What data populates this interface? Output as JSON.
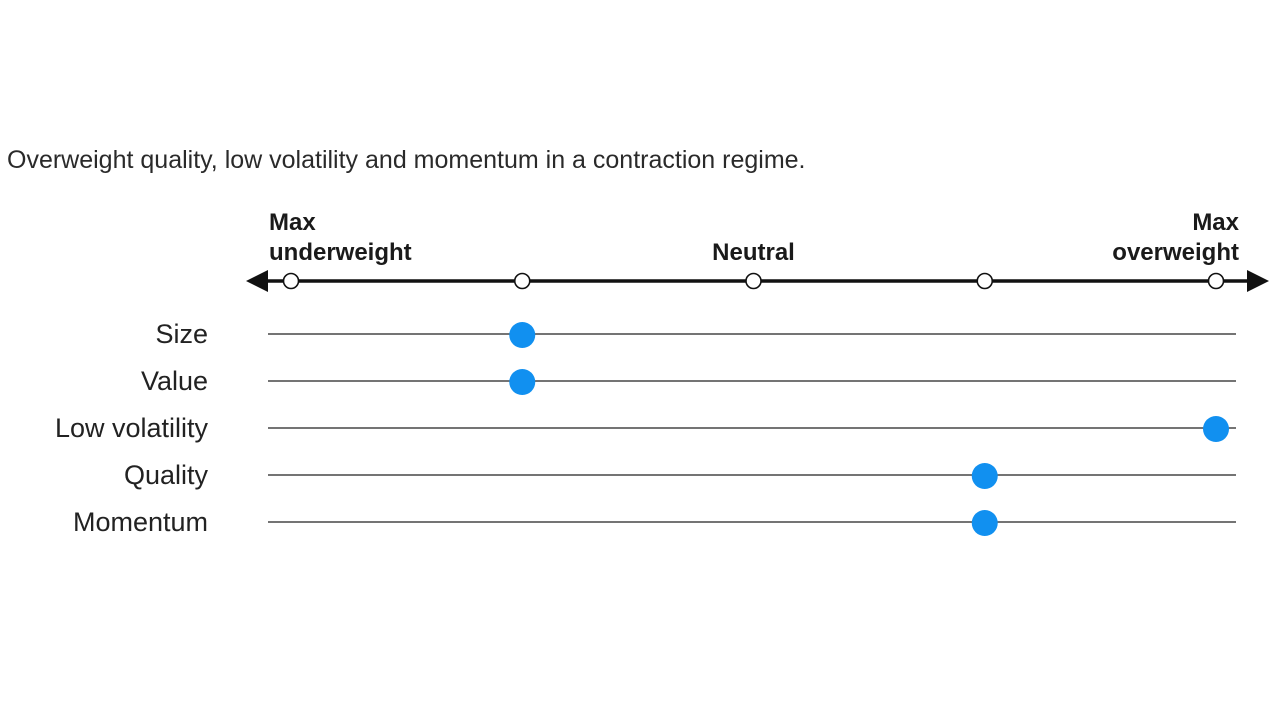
{
  "chart_data": {
    "type": "scatter",
    "title": "",
    "subtitle": "Overweight quality, low volatility and momentum in a contraction regime.",
    "scale": {
      "positions": [
        -2,
        -1,
        0,
        1,
        2
      ],
      "labels": [
        {
          "position": -2,
          "lines": [
            "Max",
            "underweight"
          ]
        },
        {
          "position": 0,
          "lines": [
            "Neutral"
          ]
        },
        {
          "position": 2,
          "lines": [
            "Max",
            "overweight"
          ]
        }
      ]
    },
    "categories": [
      "Size",
      "Value",
      "Low volatility",
      "Quality",
      "Momentum"
    ],
    "values": [
      -1,
      -1,
      2,
      1,
      1
    ],
    "colors": {
      "marker": "#1190f0",
      "axis": "#111111",
      "row_line": "#222222",
      "tick_fill": "#ffffff"
    }
  }
}
